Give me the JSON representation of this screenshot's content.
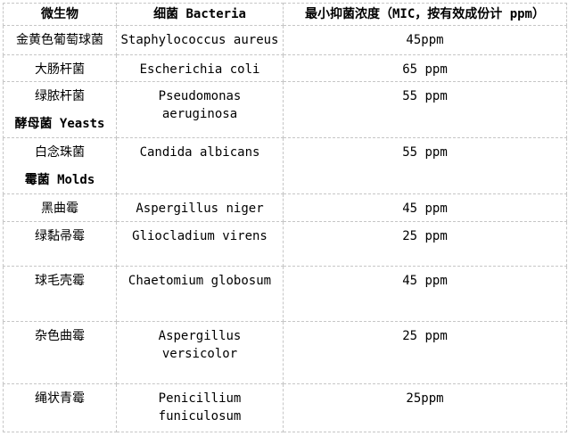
{
  "table": {
    "headers": {
      "microorganism": "微生物",
      "bacteria": "细菌 Bacteria",
      "mic": "最小抑菌浓度（MIC，按有效成份计 ppm）"
    },
    "rows": [
      {
        "name_cn": "金黄色葡萄球菌",
        "name_latin": "Staphylococcus aureus",
        "mic": "45ppm"
      },
      {
        "name_cn": "大肠杆菌",
        "name_latin": "Escherichia coli",
        "mic": "65 ppm"
      },
      {
        "name_cn": "绿脓杆菌",
        "section": "酵母菌 Yeasts",
        "name_latin": "Pseudomonas aeruginosa",
        "mic": "55 ppm"
      },
      {
        "name_cn": "白念珠菌",
        "section": "霉菌 Molds",
        "name_latin": "Candida albicans",
        "mic": "55 ppm"
      },
      {
        "name_cn": "黑曲霉",
        "name_latin": "Aspergillus niger",
        "mic": "45 ppm"
      },
      {
        "name_cn": "绿黏帚霉",
        "name_latin": "Gliocladium virens",
        "mic": "25 ppm"
      },
      {
        "name_cn": "球毛壳霉",
        "name_latin": "Chaetomium globosum",
        "mic": "45 ppm"
      },
      {
        "name_cn": "杂色曲霉",
        "name_latin": "Aspergillus versicolor",
        "mic": "25 ppm"
      },
      {
        "name_cn": "绳状青霉",
        "name_latin": "Penicillium funiculosum",
        "mic": "25ppm"
      }
    ],
    "colors": {
      "border": "#c6c6c6",
      "text": "#000000",
      "background": "#ffffff"
    }
  }
}
